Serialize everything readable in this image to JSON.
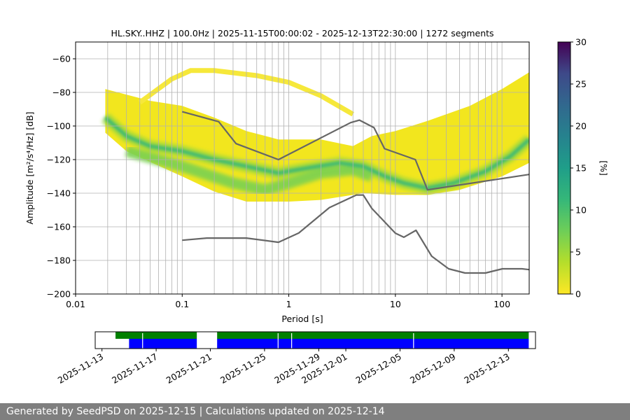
{
  "title": "HL.SKY..HHZ | 100.0Hz | 2025-11-15T00:00:02 - 2025-12-13T22:30:00 | 1272 segments",
  "footer": "Generated by SeedPSD on 2025-12-15 | Calculations updated on 2025-12-14",
  "chart_data": {
    "type": "heatmap",
    "xlabel": "Period [s]",
    "ylabel": "Amplitude [m²/s⁴/Hz] [dB]",
    "xscale": "log",
    "xlim": [
      0.01,
      180
    ],
    "ylim": [
      -200,
      -50
    ],
    "xticks": [
      0.01,
      0.1,
      1,
      10,
      100
    ],
    "xtick_labels": [
      "0.01",
      "0.1",
      "1",
      "10",
      "100"
    ],
    "yticks": [
      -200,
      -180,
      -160,
      -140,
      -120,
      -100,
      -80,
      -60
    ],
    "ytick_labels": [
      "−200",
      "−180",
      "−160",
      "−140",
      "−120",
      "−100",
      "−80",
      "−60"
    ],
    "grid": true,
    "colorbar": {
      "label": "[%]",
      "range": [
        0,
        30
      ],
      "ticks": [
        0,
        5,
        10,
        15,
        20,
        25,
        30
      ],
      "tick_labels": [
        "0",
        "5",
        "10",
        "15",
        "20",
        "25",
        "30"
      ],
      "colormap": "viridis_r"
    },
    "density_ridges": [
      {
        "name": "main-mode",
        "points": [
          [
            0.019,
            -95
          ],
          [
            0.03,
            -106
          ],
          [
            0.05,
            -112
          ],
          [
            0.1,
            -115
          ],
          [
            0.2,
            -120
          ],
          [
            0.4,
            -124
          ],
          [
            0.8,
            -128
          ],
          [
            1.5,
            -125
          ],
          [
            3,
            -122
          ],
          [
            5,
            -124
          ],
          [
            8,
            -130
          ],
          [
            12,
            -134
          ],
          [
            20,
            -137
          ],
          [
            35,
            -134
          ],
          [
            70,
            -127
          ],
          [
            120,
            -118
          ],
          [
            180,
            -108
          ]
        ]
      },
      {
        "name": "secondary-mode",
        "points": [
          [
            0.03,
            -115
          ],
          [
            0.1,
            -124
          ],
          [
            0.3,
            -134
          ],
          [
            0.6,
            -138
          ],
          [
            1,
            -134
          ],
          [
            2,
            -128
          ],
          [
            4,
            -126
          ],
          [
            6,
            -130
          ]
        ]
      }
    ],
    "density_envelope": {
      "upper": [
        [
          0.019,
          -78
        ],
        [
          0.05,
          -85
        ],
        [
          0.1,
          -88
        ],
        [
          0.2,
          -95
        ],
        [
          0.4,
          -103
        ],
        [
          0.8,
          -108
        ],
        [
          2,
          -108
        ],
        [
          4,
          -112
        ],
        [
          6,
          -106
        ],
        [
          10,
          -103
        ],
        [
          20,
          -97
        ],
        [
          50,
          -88
        ],
        [
          100,
          -78
        ],
        [
          180,
          -68
        ]
      ],
      "lower": [
        [
          0.019,
          -104
        ],
        [
          0.03,
          -115
        ],
        [
          0.1,
          -130
        ],
        [
          0.2,
          -139
        ],
        [
          0.4,
          -145
        ],
        [
          1,
          -145
        ],
        [
          2,
          -144
        ],
        [
          5,
          -140
        ],
        [
          10,
          -141
        ],
        [
          20,
          -141
        ],
        [
          40,
          -138
        ],
        [
          100,
          -130
        ],
        [
          180,
          -122
        ]
      ]
    },
    "upper_arc": {
      "points": [
        [
          0.04,
          -86
        ],
        [
          0.08,
          -72
        ],
        [
          0.12,
          -67
        ],
        [
          0.2,
          -67
        ],
        [
          0.5,
          -70
        ],
        [
          1,
          -74
        ],
        [
          2,
          -82
        ],
        [
          4,
          -93
        ]
      ]
    },
    "vertical_gridlines": [
      0.02,
      0.03,
      0.04,
      0.05,
      0.06,
      0.07,
      0.08,
      0.09,
      0.2,
      0.3,
      0.4,
      0.5,
      0.6,
      0.7,
      0.8,
      0.9,
      2,
      3,
      4,
      5,
      6,
      7,
      8,
      9,
      20,
      30,
      40,
      50,
      60,
      70,
      80,
      90
    ],
    "series": [
      {
        "style": "high-noise-model",
        "x": [
          0.1,
          0.22,
          0.32,
          0.8,
          3.8,
          4.6,
          6.3,
          7.9,
          15.4,
          20,
          354.8
        ],
        "y": [
          -91.5,
          -97.4,
          -110.5,
          -120,
          -98,
          -96.5,
          -101,
          -113.5,
          -120,
          -138,
          -126
        ]
      },
      {
        "style": "low-noise-model",
        "x": [
          0.1,
          0.17,
          0.4,
          0.8,
          1.24,
          2.4,
          4.3,
          5,
          6,
          10,
          12,
          15.6,
          21.9,
          31.6,
          45,
          70,
          101,
          154,
          180
        ],
        "y": [
          -168,
          -166.7,
          -166.7,
          -169.2,
          -163.7,
          -148.6,
          -141.1,
          -141.1,
          -149,
          -163.8,
          -166.2,
          -162.1,
          -177.5,
          -185,
          -187.5,
          -187.5,
          -185,
          -185,
          -185.5
        ]
      }
    ]
  },
  "timeline": {
    "tick_labels": [
      "2025-11-13",
      "2025-11-17",
      "2025-11-21",
      "2025-11-25",
      "2025-11-29",
      "2025-12-01",
      "2025-12-05",
      "2025-12-09",
      "2025-12-13"
    ],
    "tick_dates": [
      "2025-11-13",
      "2025-11-17",
      "2025-11-21",
      "2025-11-25",
      "2025-11-29",
      "2025-12-01",
      "2025-12-05",
      "2025-12-09",
      "2025-12-13"
    ],
    "range": [
      "2025-11-12T12:00",
      "2025-12-15T00:00"
    ],
    "green_bars": [
      [
        "2025-11-14T00:00",
        "2025-11-20T00:00"
      ],
      [
        "2025-11-21T12:00",
        "2025-12-14T12:00"
      ]
    ],
    "blue_bars": [
      [
        "2025-11-15T00:00",
        "2025-11-20T00:00"
      ],
      [
        "2025-11-21T12:00",
        "2025-12-14T12:00"
      ]
    ],
    "gaps": [
      "2025-11-16T00:00",
      "2025-11-26T00:00",
      "2025-11-27T00:00",
      "2025-12-06T00:00"
    ],
    "colors": {
      "green": "#008000",
      "blue": "#0000ff",
      "gap": "#ffffff"
    }
  }
}
